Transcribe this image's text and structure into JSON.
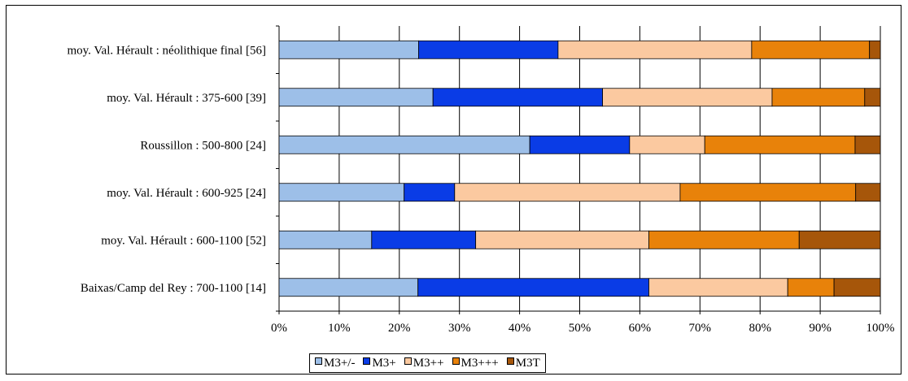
{
  "chart_data": {
    "type": "bar",
    "orientation": "horizontal",
    "stacked": "percent",
    "categories": [
      "moy. Val. Hérault : néolithique final [56]",
      "moy. Val. Hérault : 375-600 [39]",
      "Roussillon : 500-800 [24]",
      "moy. Val. Hérault : 600-925 [24]",
      "moy. Val. Hérault : 600-1100 [52]",
      "Baixas/Camp del Rey : 700-1100 [14]"
    ],
    "series": [
      {
        "name": "M3+/-",
        "color": "#9dbfe8",
        "values": [
          23.2,
          25.6,
          41.7,
          20.8,
          15.4,
          23.1
        ]
      },
      {
        "name": "M3+",
        "color": "#0a3ce6",
        "values": [
          23.2,
          28.2,
          16.6,
          8.4,
          17.3,
          38.4
        ]
      },
      {
        "name": "M3++",
        "color": "#fbc9a0",
        "values": [
          32.2,
          28.2,
          12.5,
          37.5,
          28.8,
          23.1
        ]
      },
      {
        "name": "M3+++",
        "color": "#e8820a",
        "values": [
          19.6,
          15.4,
          25.0,
          29.2,
          25.0,
          7.7
        ]
      },
      {
        "name": "M3T",
        "color": "#a6560a",
        "values": [
          1.8,
          2.6,
          4.2,
          4.1,
          13.5,
          7.7
        ]
      }
    ],
    "xlim": [
      0,
      100
    ],
    "x_ticks": [
      "0%",
      "10%",
      "20%",
      "30%",
      "40%",
      "50%",
      "60%",
      "70%",
      "80%",
      "90%",
      "100%"
    ],
    "grid": "vertical",
    "legend_position": "bottom",
    "title": "",
    "xlabel": "",
    "ylabel": ""
  }
}
